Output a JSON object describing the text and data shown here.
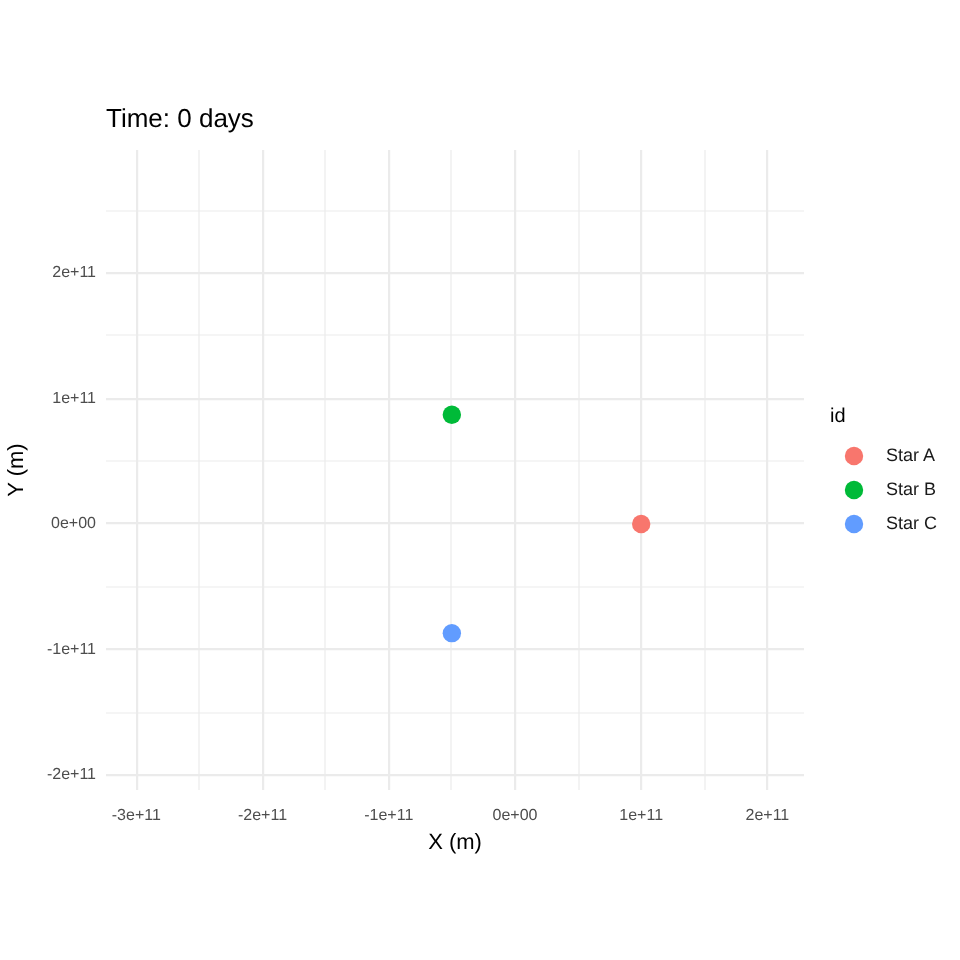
{
  "chart_data": {
    "type": "scatter",
    "title": "Time: 0 days",
    "xlabel": "X (m)",
    "ylabel": "Y (m)",
    "legend_title": "id",
    "x": [
      -50000000000.0,
      100000000000.0
    ],
    "series": [
      {
        "name": "Star A",
        "color": "#f8766d",
        "values": [
          null,
          0
        ]
      },
      {
        "name": "Star B",
        "color": "#00ba38",
        "values": [
          87000000000.0,
          null
        ]
      },
      {
        "name": "Star C",
        "color": "#619cff",
        "values": [
          -87000000000.0,
          null
        ]
      }
    ],
    "xlim": [
      -324000000000.0,
      229000000000.0
    ],
    "ylim": [
      -212000000000.0,
      298000000000.0
    ],
    "xticks": [
      {
        "value": -300000000000.0,
        "label": "-3e+11"
      },
      {
        "value": -250000000000.0,
        "label": null
      },
      {
        "value": -200000000000.0,
        "label": "-2e+11"
      },
      {
        "value": -150000000000.0,
        "label": null
      },
      {
        "value": -100000000000.0,
        "label": "-1e+11"
      },
      {
        "value": -50000000000.0,
        "label": null
      },
      {
        "value": 0,
        "label": "0e+00"
      },
      {
        "value": 50000000000.0,
        "label": null
      },
      {
        "value": 100000000000.0,
        "label": "1e+11"
      },
      {
        "value": 150000000000.0,
        "label": null
      },
      {
        "value": 200000000000.0,
        "label": "2e+11"
      }
    ],
    "yticks": [
      {
        "value": -200000000000.0,
        "label": "-2e+11"
      },
      {
        "value": -150000000000.0,
        "label": null
      },
      {
        "value": -100000000000.0,
        "label": "-1e+11"
      },
      {
        "value": -50000000000.0,
        "label": null
      },
      {
        "value": 0,
        "label": "0e+00"
      },
      {
        "value": 50000000000.0,
        "label": null
      },
      {
        "value": 100000000000.0,
        "label": "1e+11"
      },
      {
        "value": 150000000000.0,
        "label": null
      },
      {
        "value": 200000000000.0,
        "label": "2e+11"
      },
      {
        "value": 250000000000.0,
        "label": null
      }
    ],
    "grid": true,
    "legend": "right",
    "marker": "circle"
  }
}
